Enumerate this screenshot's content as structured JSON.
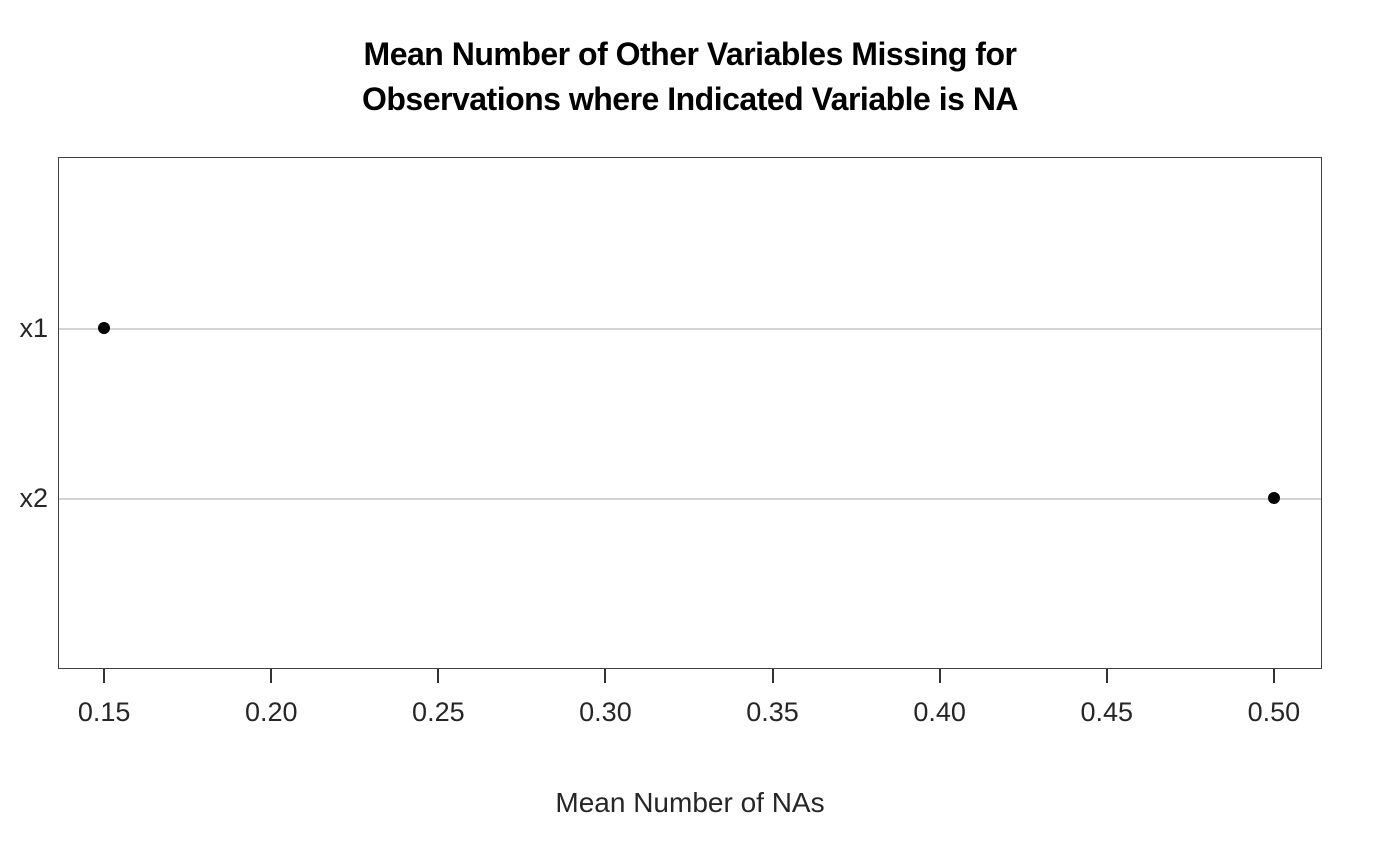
{
  "chart_data": {
    "type": "scatter",
    "subtype": "dot-plot",
    "title": "Mean Number of Other Variables Missing for\nObservations where Indicated Variable is NA",
    "xlabel": "Mean Number of NAs",
    "ylabel": "",
    "categories": [
      "x1",
      "x2"
    ],
    "values": [
      0.15,
      0.5
    ],
    "x_ticks": [
      0.15,
      0.2,
      0.25,
      0.3,
      0.35,
      0.4,
      0.45,
      0.5
    ],
    "x_tick_labels": [
      "0.15",
      "0.20",
      "0.25",
      "0.30",
      "0.35",
      "0.40",
      "0.45",
      "0.50"
    ],
    "xlim": [
      0.1362,
      0.5144
    ],
    "grid": "horizontal gray line at each category row",
    "legend_position": "none",
    "colors": {
      "point": "#000000",
      "grid_line": "#d4d4d4",
      "panel_border": "#404040",
      "axis_text": "#262626",
      "title_text": "#000000",
      "background": "#ffffff"
    }
  }
}
